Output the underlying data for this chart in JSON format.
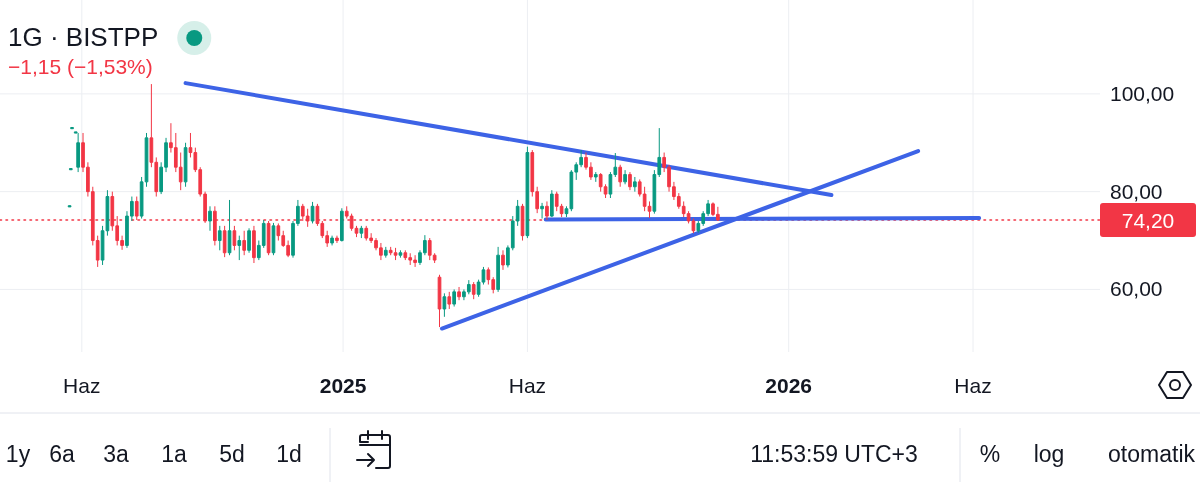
{
  "chart_data": {
    "type": "candlestick",
    "title": "1G · BISTPP",
    "annotations": [
      "−1,15 (−1,53%)",
      "1y",
      "6a",
      "3a",
      "1a",
      "5d",
      "1d",
      "11:53:59 UTC+3",
      "%",
      "log",
      "otomatik"
    ],
    "x": [
      "2024-05-22",
      "2024-05-23",
      "2024-05-24",
      "2024-05-27",
      "2024-05-29",
      "2024-06-02",
      "2024-06-06",
      "2024-06-10",
      "2024-06-14",
      "2024-06-18",
      "2024-06-22",
      "2024-06-26",
      "2024-06-30",
      "2024-07-04",
      "2024-07-08",
      "2024-07-12",
      "2024-07-16",
      "2024-07-20",
      "2024-07-24",
      "2024-07-28",
      "2024-08-01",
      "2024-08-05",
      "2024-08-09",
      "2024-08-13",
      "2024-08-17",
      "2024-08-21",
      "2024-08-25",
      "2024-08-29",
      "2024-09-02",
      "2024-09-06",
      "2024-09-10",
      "2024-09-14",
      "2024-09-18",
      "2024-09-22",
      "2024-09-26",
      "2024-09-30",
      "2024-10-04",
      "2024-10-08",
      "2024-10-12",
      "2024-10-16",
      "2024-10-20",
      "2024-10-24",
      "2024-10-28",
      "2024-11-01",
      "2024-11-05",
      "2024-11-09",
      "2024-11-13",
      "2024-11-17",
      "2024-11-21",
      "2024-11-25",
      "2024-11-29",
      "2024-12-03",
      "2024-12-07",
      "2024-12-11",
      "2024-12-15",
      "2024-12-19",
      "2024-12-23",
      "2024-12-27",
      "2024-12-31",
      "2025-01-04",
      "2025-01-08",
      "2025-01-12",
      "2025-01-16",
      "2025-01-20",
      "2025-01-24",
      "2025-01-28",
      "2025-02-01",
      "2025-02-05",
      "2025-02-09",
      "2025-02-13",
      "2025-02-17",
      "2025-02-21",
      "2025-02-25",
      "2025-03-01",
      "2025-03-05",
      "2025-03-09",
      "2025-03-13",
      "2025-03-17",
      "2025-03-21",
      "2025-03-25",
      "2025-03-29",
      "2025-04-02",
      "2025-04-06",
      "2025-04-10",
      "2025-04-14",
      "2025-04-18",
      "2025-04-22",
      "2025-04-26",
      "2025-04-30",
      "2025-05-04",
      "2025-05-08",
      "2025-05-12",
      "2025-05-16",
      "2025-05-20",
      "2025-05-24",
      "2025-05-28",
      "2025-06-01",
      "2025-06-05",
      "2025-06-09",
      "2025-06-13",
      "2025-06-17",
      "2025-06-21",
      "2025-06-25",
      "2025-06-29",
      "2025-07-03",
      "2025-07-07",
      "2025-07-11",
      "2025-07-15",
      "2025-07-19",
      "2025-07-23",
      "2025-07-27",
      "2025-07-31",
      "2025-08-04",
      "2025-08-08",
      "2025-08-12",
      "2025-08-16",
      "2025-08-20",
      "2025-08-24",
      "2025-08-28",
      "2025-09-01",
      "2025-09-05",
      "2025-09-09",
      "2025-09-13",
      "2025-09-17",
      "2025-09-21",
      "2025-09-25",
      "2025-09-29",
      "2025-10-03",
      "2025-10-07",
      "2025-10-11",
      "2025-10-15",
      "2025-10-19",
      "2025-10-23",
      "2025-10-27",
      "2025-10-31",
      "2025-11-04"
    ],
    "ohlc": [
      [
        77,
        77,
        77,
        77
      ],
      [
        84.6,
        84.6,
        84.6,
        84.6
      ],
      [
        93,
        93,
        93,
        93
      ],
      [
        92.1,
        92.1,
        92.1,
        92.1
      ],
      [
        85,
        92,
        84,
        90
      ],
      [
        90,
        92,
        84,
        85
      ],
      [
        85,
        86,
        79,
        80
      ],
      [
        80,
        81,
        69,
        70
      ],
      [
        70,
        71,
        64.6,
        66
      ],
      [
        66,
        73,
        65,
        72
      ],
      [
        72,
        80.3,
        71,
        79
      ],
      [
        79,
        80,
        72,
        73
      ],
      [
        73,
        75,
        69,
        70
      ],
      [
        70,
        71,
        68.1,
        69
      ],
      [
        69,
        76,
        68.5,
        75
      ],
      [
        75,
        79,
        74,
        78
      ],
      [
        78,
        79,
        74.2,
        75
      ],
      [
        75,
        83,
        74.5,
        82
      ],
      [
        82,
        92,
        81,
        91
      ],
      [
        91,
        102,
        85,
        86
      ],
      [
        86,
        87,
        79,
        80
      ],
      [
        80,
        86,
        79.5,
        85
      ],
      [
        85,
        91,
        84,
        90
      ],
      [
        90,
        94,
        88,
        89
      ],
      [
        89,
        92,
        84,
        85
      ],
      [
        85,
        88,
        80.3,
        82
      ],
      [
        82,
        90,
        81,
        89
      ],
      [
        89,
        92,
        87,
        88
      ],
      [
        88,
        89,
        84,
        84.5
      ],
      [
        84.5,
        85,
        79,
        79.5
      ],
      [
        79.5,
        80,
        73.6,
        74
      ],
      [
        74,
        77,
        72,
        76
      ],
      [
        76,
        77,
        69,
        70
      ],
      [
        70,
        73,
        68,
        72
      ],
      [
        72,
        73,
        66.6,
        67.5
      ],
      [
        67.5,
        78.3,
        67,
        72
      ],
      [
        72,
        73,
        68,
        69
      ],
      [
        69,
        71,
        66,
        70
      ],
      [
        70,
        72,
        67,
        68
      ],
      [
        68,
        72.5,
        67.5,
        72
      ],
      [
        72,
        73,
        65.4,
        66.5
      ],
      [
        66.5,
        70,
        66,
        69
      ],
      [
        69,
        74.2,
        68.5,
        73.5
      ],
      [
        73.5,
        74,
        67,
        67.5
      ],
      [
        67.5,
        73.6,
        67,
        73
      ],
      [
        73,
        73.5,
        70,
        71
      ],
      [
        71,
        72,
        68.7,
        69
      ],
      [
        69,
        70,
        66.6,
        67
      ],
      [
        67,
        74,
        66.5,
        73.5
      ],
      [
        73.5,
        78.3,
        73,
        77
      ],
      [
        77,
        77.5,
        74,
        75
      ],
      [
        75,
        76.5,
        72.8,
        74
      ],
      [
        74,
        77.9,
        73.5,
        77
      ],
      [
        77,
        77.5,
        73,
        73.5
      ],
      [
        73.5,
        74,
        70.5,
        71
      ],
      [
        71,
        72,
        68.7,
        69.5
      ],
      [
        69.5,
        71,
        69,
        70.5
      ],
      [
        70.5,
        71,
        69.5,
        70
      ],
      [
        70,
        76.6,
        69.8,
        76
      ],
      [
        76,
        77,
        74.5,
        75
      ],
      [
        75,
        75.5,
        72,
        72.5
      ],
      [
        72.5,
        73,
        70.7,
        71.5
      ],
      [
        71.5,
        73,
        70.5,
        72.5
      ],
      [
        72.5,
        73,
        70,
        70.5
      ],
      [
        70.5,
        71.5,
        69.5,
        70
      ],
      [
        70,
        70.5,
        68,
        68.5
      ],
      [
        68.5,
        69.5,
        66,
        67
      ],
      [
        67,
        68.7,
        66.5,
        68
      ],
      [
        68,
        68.7,
        67,
        67.5
      ],
      [
        67.5,
        68.5,
        66,
        67
      ],
      [
        67,
        68,
        66.5,
        67.5
      ],
      [
        67.5,
        68,
        66,
        66.5
      ],
      [
        66.5,
        67.4,
        65,
        66
      ],
      [
        66,
        67,
        64.6,
        65.5
      ],
      [
        65.5,
        68,
        65,
        67.5
      ],
      [
        67.5,
        71.1,
        67,
        70
      ],
      [
        70,
        70.5,
        66,
        67
      ],
      [
        67,
        67.4,
        65.4,
        66
      ],
      [
        62.5,
        63,
        52.3,
        56
      ],
      [
        56,
        59.2,
        54.4,
        58.5
      ],
      [
        58.5,
        59.5,
        56,
        57
      ],
      [
        57,
        60,
        56.5,
        59.5
      ],
      [
        59.5,
        60.5,
        57.8,
        58.5
      ],
      [
        58.5,
        60,
        57.8,
        59.5
      ],
      [
        59.5,
        61.9,
        59,
        61
      ],
      [
        61,
        61.5,
        58,
        59
      ],
      [
        59,
        62,
        58.5,
        61.5
      ],
      [
        61.5,
        64.6,
        61,
        64
      ],
      [
        64,
        64.5,
        61,
        62
      ],
      [
        62,
        62.5,
        59.2,
        60
      ],
      [
        60,
        68.7,
        59.5,
        67
      ],
      [
        67,
        68,
        64,
        65
      ],
      [
        65,
        69,
        64.5,
        68.5
      ],
      [
        68.5,
        75,
        68,
        74
      ],
      [
        74,
        78.3,
        73,
        77
      ],
      [
        77,
        77.5,
        70,
        71
      ],
      [
        71,
        89.2,
        70.5,
        88
      ],
      [
        88,
        88.5,
        79,
        80
      ],
      [
        80,
        81,
        75.6,
        76.5
      ],
      [
        76.5,
        77.7,
        74.5,
        77
      ],
      [
        77,
        78,
        74.2,
        75
      ],
      [
        75,
        80.3,
        74.8,
        79.5
      ],
      [
        79.5,
        80,
        76,
        77
      ],
      [
        77,
        77.5,
        74.8,
        75.5
      ],
      [
        75.5,
        77,
        74.8,
        76.5
      ],
      [
        76.5,
        84.4,
        76,
        84
      ],
      [
        84,
        86,
        82.4,
        85.5
      ],
      [
        85.5,
        88.5,
        85,
        87
      ],
      [
        87,
        88,
        84.5,
        85
      ],
      [
        85,
        86,
        82.4,
        83
      ],
      [
        83,
        84,
        82,
        83.5
      ],
      [
        83.5,
        83.8,
        80,
        81
      ],
      [
        81,
        81.5,
        78.7,
        79.5
      ],
      [
        79.5,
        84,
        78.7,
        83.5
      ],
      [
        83.5,
        87.9,
        83,
        85
      ],
      [
        85,
        85.5,
        81,
        82
      ],
      [
        82,
        84.4,
        81.5,
        83.5
      ],
      [
        83.5,
        84,
        80.3,
        81
      ],
      [
        81,
        83,
        80,
        82
      ],
      [
        82,
        82.5,
        79,
        79.5
      ],
      [
        79.5,
        81,
        76,
        77
      ],
      [
        77,
        78,
        74.6,
        76
      ],
      [
        76,
        84.4,
        75.5,
        83.5
      ],
      [
        83.5,
        93,
        83,
        87
      ],
      [
        87,
        88,
        84,
        85
      ],
      [
        85,
        85.5,
        80,
        81
      ],
      [
        81,
        82,
        78.3,
        79
      ],
      [
        79,
        79.7,
        76.5,
        77
      ],
      [
        77,
        78,
        74.8,
        75.5
      ],
      [
        75.5,
        76,
        73.5,
        74
      ],
      [
        74,
        74.5,
        71.5,
        72
      ],
      [
        72,
        74,
        71.6,
        73.5
      ],
      [
        73.5,
        76,
        73,
        75.5
      ],
      [
        75.5,
        78.3,
        75,
        77.5
      ],
      [
        77.5,
        77.8,
        75,
        75.35
      ],
      [
        75.35,
        76.9,
        74,
        74.2
      ]
    ],
    "series": [
      {
        "type": "line",
        "color": "#3d63e6",
        "x": [
          "2024-08-25",
          "2026-02-05"
        ],
        "values": [
          102.2,
          79.3
        ]
      },
      {
        "type": "line",
        "color": "#3d63e6",
        "x": [
          "2025-03-23",
          "2026-04-17"
        ],
        "values": [
          52.0,
          88.3
        ]
      },
      {
        "type": "line",
        "color": "#3d63e6",
        "x": [
          "2025-06-16",
          "2026-06-06"
        ],
        "values": [
          74.3,
          74.6
        ]
      }
    ],
    "xlim": [
      "2024-03-26",
      "2026-09-13"
    ],
    "xticks": [
      {
        "value": "2024-06-01",
        "label": "Haz"
      },
      {
        "value": "2025-01-01",
        "label": "2025"
      },
      {
        "value": "2025-06-01",
        "label": "Haz"
      },
      {
        "value": "2026-01-01",
        "label": "2026"
      },
      {
        "value": "2026-06-01",
        "label": "Haz"
      }
    ],
    "ylim": [
      47.2,
      119.2
    ],
    "yticks": [
      {
        "value": 60,
        "label": "60,00"
      },
      {
        "value": 80,
        "label": "80,00"
      },
      {
        "value": 100,
        "label": "100,00"
      }
    ],
    "ref_lines": [
      {
        "axis": "y",
        "value": 74.2,
        "label": "74,20",
        "color": "#f23645",
        "line_style": "dotted"
      }
    ],
    "grid": true
  }
}
